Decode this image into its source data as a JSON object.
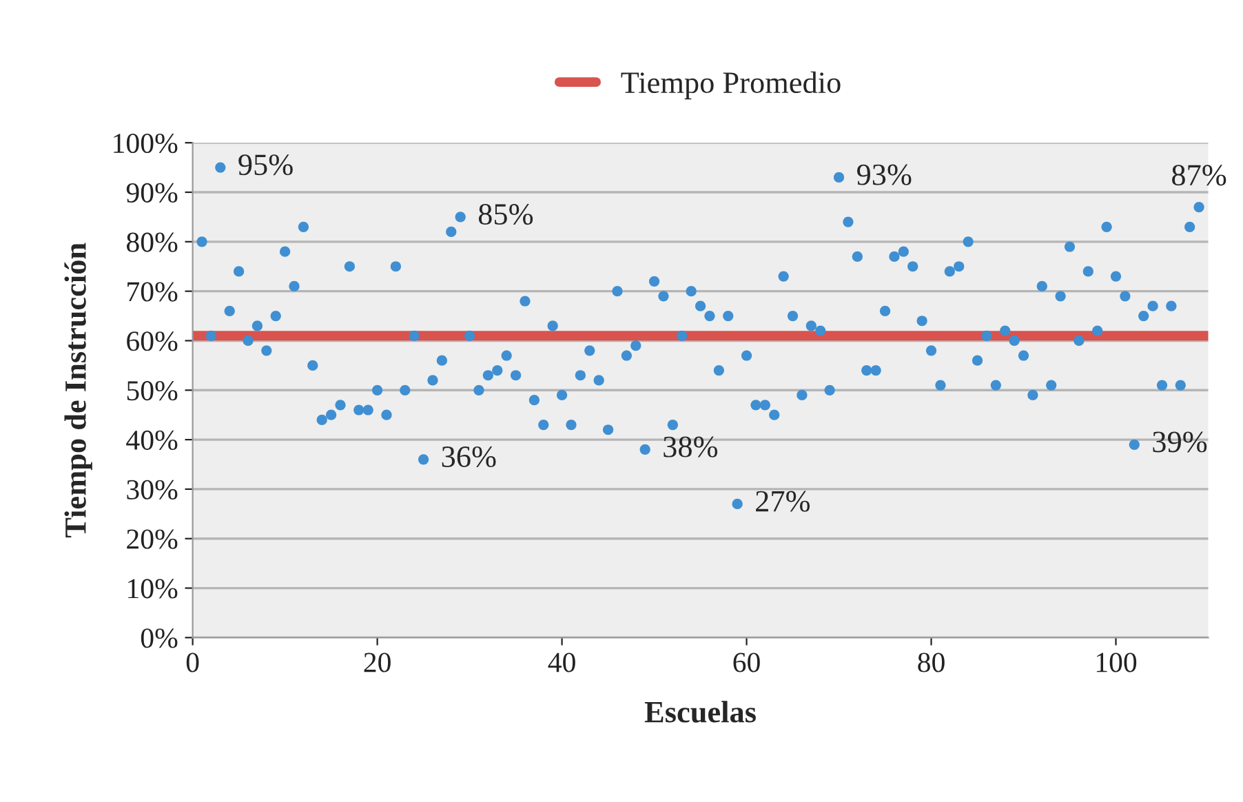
{
  "chart_data": {
    "type": "scatter",
    "xlabel": "Escuelas",
    "ylabel": "Tiempo de Instrucción",
    "x": [
      1,
      2,
      3,
      4,
      5,
      6,
      7,
      8,
      9,
      10,
      11,
      12,
      13,
      14,
      15,
      16,
      17,
      18,
      19,
      20,
      21,
      22,
      23,
      24,
      25,
      26,
      27,
      28,
      29,
      30,
      31,
      32,
      33,
      34,
      35,
      36,
      37,
      38,
      39,
      40,
      41,
      42,
      43,
      44,
      45,
      46,
      47,
      48,
      49,
      50,
      51,
      52,
      53,
      54,
      55,
      56,
      57,
      58,
      59,
      60,
      61,
      62,
      63,
      64,
      65,
      66,
      67,
      68,
      69,
      70,
      71,
      72,
      73,
      74,
      75,
      76,
      77,
      78,
      79,
      80,
      81,
      82,
      83,
      84,
      85,
      86,
      87,
      88,
      89,
      90,
      91,
      92,
      93,
      94,
      95,
      96,
      97,
      98,
      99,
      100,
      101,
      102,
      103,
      104,
      105,
      106,
      107,
      108,
      109
    ],
    "series": [
      {
        "color": "#3f8fd2",
        "values": [
          80,
          61,
          95,
          66,
          74,
          60,
          63,
          58,
          65,
          78,
          71,
          83,
          55,
          44,
          45,
          47,
          75,
          46,
          46,
          50,
          45,
          75,
          50,
          61,
          36,
          52,
          56,
          82,
          85,
          61,
          50,
          53,
          54,
          57,
          53,
          68,
          48,
          43,
          63,
          49,
          43,
          53,
          58,
          52,
          42,
          70,
          57,
          59,
          38,
          72,
          69,
          43,
          61,
          70,
          67,
          65,
          54,
          65,
          27,
          57,
          47,
          47,
          45,
          73,
          65,
          49,
          63,
          62,
          50,
          93,
          84,
          77,
          54,
          54,
          66,
          77,
          78,
          75,
          64,
          58,
          51,
          74,
          75,
          80,
          56,
          61,
          51,
          62,
          60,
          57,
          49,
          71,
          51,
          69,
          79,
          60,
          74,
          62,
          83,
          73,
          69,
          39,
          65,
          67,
          51,
          67,
          51,
          83,
          87
        ]
      }
    ],
    "ref_lines": [
      {
        "axis": "y",
        "value": 61,
        "label": "Tiempo Promedio",
        "color": "#d9534f"
      }
    ],
    "annotations": [
      {
        "text": "95%",
        "x": 3,
        "y": 95
      },
      {
        "text": "85%",
        "x": 29,
        "y": 85
      },
      {
        "text": "36%",
        "x": 25,
        "y": 36
      },
      {
        "text": "38%",
        "x": 49,
        "y": 38
      },
      {
        "text": "27%",
        "x": 59,
        "y": 27
      },
      {
        "text": "93%",
        "x": 70,
        "y": 93
      },
      {
        "text": "39%",
        "x": 102,
        "y": 39
      },
      {
        "text": "87%",
        "x": 109,
        "y": 87
      }
    ],
    "xlim": [
      0,
      110
    ],
    "xticks": [
      0,
      20,
      40,
      60,
      80,
      100
    ],
    "ylim": [
      0,
      100
    ],
    "yticks": [
      {
        "value": 0,
        "label": "0%"
      },
      {
        "value": 10,
        "label": "10%"
      },
      {
        "value": 20,
        "label": "20%"
      },
      {
        "value": 30,
        "label": "30%"
      },
      {
        "value": 40,
        "label": "40%"
      },
      {
        "value": 50,
        "label": "50%"
      },
      {
        "value": 60,
        "label": "60%"
      },
      {
        "value": 70,
        "label": "70%"
      },
      {
        "value": 80,
        "label": "80%"
      },
      {
        "value": 90,
        "label": "90%"
      },
      {
        "value": 100,
        "label": "100%"
      }
    ],
    "grid": "y",
    "legend": "top",
    "marker": "circle"
  }
}
